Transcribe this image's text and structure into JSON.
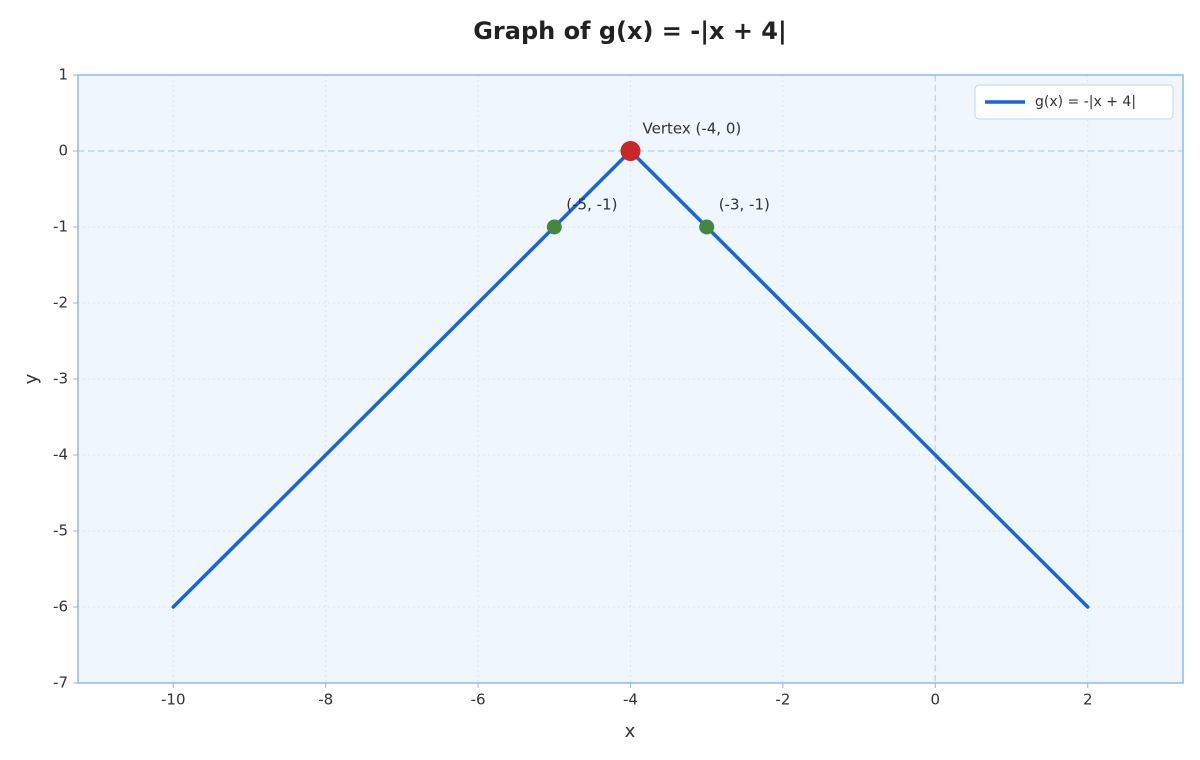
{
  "chart_data": {
    "type": "line",
    "title": "Graph of g(x) = -|x + 4|",
    "x_label": "x",
    "y_label": "y",
    "xlim": [
      -11.25,
      3.25
    ],
    "ylim": [
      -7,
      1
    ],
    "xticks": [
      -10,
      -8,
      -6,
      -4,
      -2,
      0,
      2
    ],
    "yticks": [
      -7,
      -6,
      -5,
      -4,
      -3,
      -2,
      -1,
      0,
      1
    ],
    "grid": true,
    "legend": "upper right",
    "reference_lines": {
      "x": 0,
      "y": 0
    },
    "series": [
      {
        "name": "g(x) = -|x + 4|",
        "color": "#1565e0",
        "x": [
          -10,
          -4,
          2
        ],
        "values": [
          -6,
          0,
          -6
        ]
      }
    ],
    "points": [
      {
        "x": -4,
        "y": 0,
        "color": "#c62828",
        "label": "Vertex (-4, 0)"
      },
      {
        "x": -5,
        "y": -1,
        "color": "#43883d",
        "label": "(-5, -1)"
      },
      {
        "x": -3,
        "y": -1,
        "color": "#43883d",
        "label": "(-3, -1)"
      }
    ]
  }
}
